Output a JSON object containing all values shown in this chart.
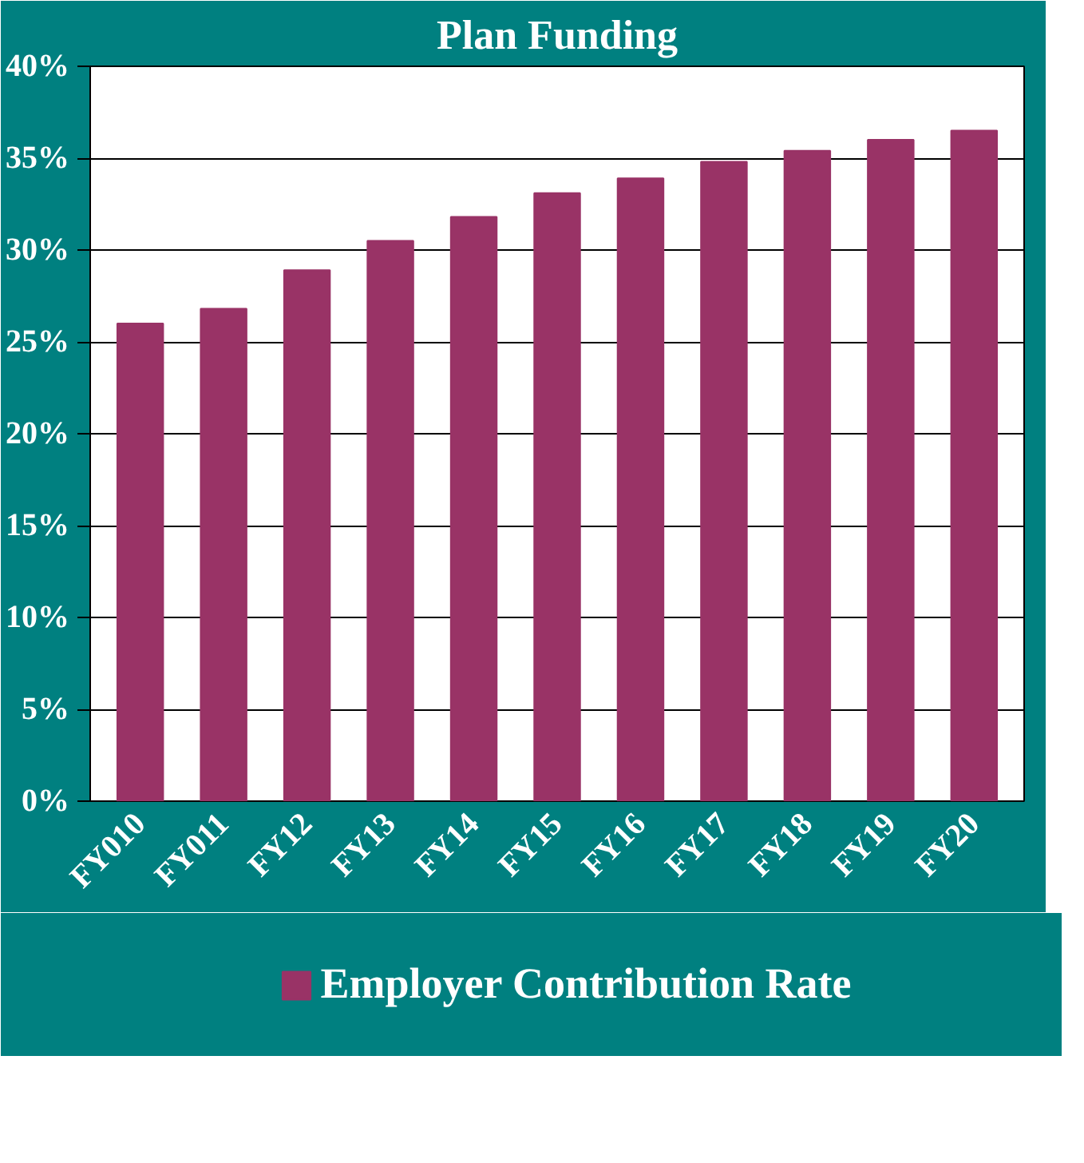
{
  "chart_data": {
    "type": "bar",
    "title": "Plan Funding",
    "categories": [
      "FY010",
      "FY011",
      "FY12",
      "FY13",
      "FY14",
      "FY15",
      "FY16",
      "FY17",
      "FY18",
      "FY19",
      "FY20"
    ],
    "series": [
      {
        "name": "Employer Contribution Rate",
        "color": "#993366",
        "values": [
          26.0,
          26.8,
          28.9,
          30.5,
          31.8,
          33.1,
          33.9,
          34.8,
          35.4,
          36.0,
          36.5
        ]
      }
    ],
    "ylim": [
      0,
      40
    ],
    "yticks": [
      {
        "value": 0,
        "label": "0%"
      },
      {
        "value": 5,
        "label": "5%"
      },
      {
        "value": 10,
        "label": "10%"
      },
      {
        "value": 15,
        "label": "15%"
      },
      {
        "value": 20,
        "label": "20%"
      },
      {
        "value": 25,
        "label": "25%"
      },
      {
        "value": 30,
        "label": "30%"
      },
      {
        "value": 35,
        "label": "35%"
      },
      {
        "value": 40,
        "label": "40%"
      }
    ],
    "grid": "y",
    "legend": "bottom"
  }
}
